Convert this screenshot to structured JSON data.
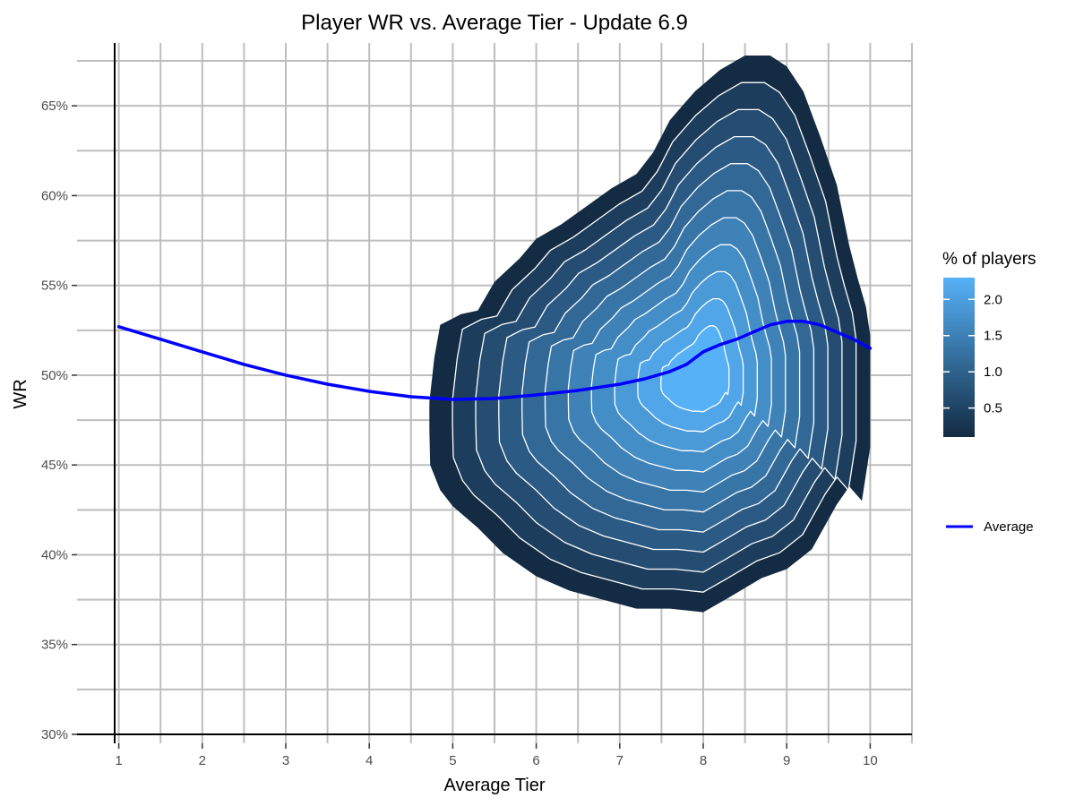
{
  "chart_data": {
    "type": "contour-density",
    "title": "Player WR vs. Average Tier - Update 6.9",
    "xlabel": "Average Tier",
    "ylabel": "WR",
    "xlim": [
      0.5,
      10.5
    ],
    "ylim": [
      29.5,
      68.5
    ],
    "x_ticks": [
      1,
      2,
      3,
      4,
      5,
      6,
      7,
      8,
      9,
      10
    ],
    "x_tick_labels": [
      "1",
      "2",
      "3",
      "4",
      "5",
      "6",
      "7",
      "8",
      "9",
      "10"
    ],
    "y_ticks": [
      30,
      35,
      40,
      45,
      50,
      55,
      60,
      65
    ],
    "y_tick_labels": [
      "30%",
      "35%",
      "40%",
      "45%",
      "50%",
      "55%",
      "60%",
      "65%"
    ],
    "grid": true,
    "density": {
      "name": "% of players",
      "peak": {
        "x": 8.0,
        "y": 50.0,
        "value": 2.3
      },
      "outline": [
        [
          4.72,
          48.5
        ],
        [
          4.78,
          51.0
        ],
        [
          4.85,
          52.8
        ],
        [
          5.1,
          53.4
        ],
        [
          5.3,
          53.6
        ],
        [
          5.5,
          55.2
        ],
        [
          5.8,
          56.5
        ],
        [
          6.0,
          57.6
        ],
        [
          6.3,
          58.4
        ],
        [
          6.6,
          59.4
        ],
        [
          6.9,
          60.4
        ],
        [
          7.2,
          61.2
        ],
        [
          7.4,
          62.4
        ],
        [
          7.6,
          64.2
        ],
        [
          7.9,
          65.8
        ],
        [
          8.2,
          67.0
        ],
        [
          8.5,
          67.8
        ],
        [
          8.8,
          67.8
        ],
        [
          9.0,
          67.2
        ],
        [
          9.2,
          65.8
        ],
        [
          9.4,
          63.3
        ],
        [
          9.6,
          60.6
        ],
        [
          9.75,
          57.2
        ],
        [
          9.85,
          55.4
        ],
        [
          9.95,
          53.8
        ],
        [
          10.0,
          52.2
        ],
        [
          10.0,
          48.0
        ],
        [
          10.0,
          46.0
        ],
        [
          9.9,
          43.0
        ],
        [
          9.75,
          43.8
        ],
        [
          9.6,
          42.8
        ],
        [
          9.3,
          40.3
        ],
        [
          9.0,
          39.2
        ],
        [
          8.7,
          38.7
        ],
        [
          8.3,
          37.6
        ],
        [
          8.0,
          36.8
        ],
        [
          7.6,
          37.0
        ],
        [
          7.2,
          37.0
        ],
        [
          6.8,
          37.5
        ],
        [
          6.4,
          38.0
        ],
        [
          6.0,
          38.8
        ],
        [
          5.6,
          40.1
        ],
        [
          5.3,
          41.5
        ],
        [
          5.0,
          42.7
        ],
        [
          4.85,
          43.6
        ],
        [
          4.73,
          45.0
        ],
        [
          4.72,
          47.0
        ]
      ],
      "contour_levels": 11
    },
    "series": [
      {
        "name": "Average",
        "color": "#0000ff",
        "x": [
          1.0,
          1.5,
          2.0,
          2.5,
          3.0,
          3.5,
          4.0,
          4.5,
          5.0,
          5.5,
          6.0,
          6.5,
          7.0,
          7.3,
          7.6,
          7.8,
          8.0,
          8.2,
          8.4,
          8.6,
          8.8,
          9.0,
          9.2,
          9.4,
          9.6,
          9.8,
          10.0
        ],
        "y": [
          52.7,
          52.0,
          51.3,
          50.6,
          50.0,
          49.5,
          49.1,
          48.8,
          48.65,
          48.7,
          48.9,
          49.15,
          49.5,
          49.8,
          50.2,
          50.6,
          51.3,
          51.7,
          52.0,
          52.4,
          52.8,
          53.0,
          53.0,
          52.8,
          52.4,
          52.0,
          51.5
        ]
      }
    ],
    "legend": {
      "position": "right",
      "colorbar_title": "% of players",
      "colorbar_ticks": [
        0.5,
        1.0,
        1.5,
        2.0
      ],
      "colorbar_tick_labels": [
        "0.5",
        "1.0",
        "1.5",
        "2.0"
      ],
      "colorbar_range": [
        0.1,
        2.3
      ],
      "color_low": "#132b43",
      "color_high": "#56b1f7",
      "line_label": "Average"
    }
  }
}
